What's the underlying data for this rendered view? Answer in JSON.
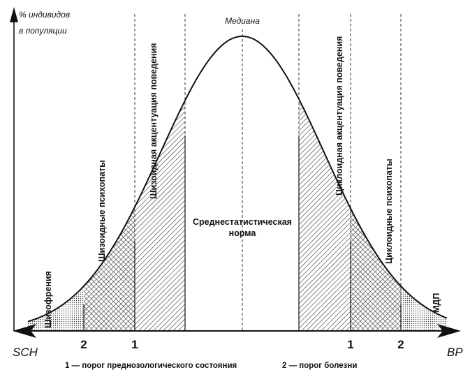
{
  "axis": {
    "y_label_line1": "% индивидов",
    "y_label_line2": "в популяции",
    "left_end": "SCH",
    "right_end": "BP"
  },
  "median_label": "Медиана",
  "regions": {
    "schizophrenia": "Шизофрения",
    "schizoid_psychopaths": "Шизоидные психопаты",
    "schizoid_accentuation": "Шизоидная акцентуация поведения",
    "norm_line1": "Среднестатистическая",
    "norm_line2": "норма",
    "cycloid_accentuation": "Циклоидная акцентуация поведения",
    "cycloid_psychopaths": "Циклоидные психопаты",
    "mdp": "МДП"
  },
  "threshold_marks": {
    "left_outer": "2",
    "left_inner": "1",
    "right_inner": "1",
    "right_outer": "2"
  },
  "legend": {
    "item1": "1 — порог преднозологического состояния",
    "item2": "2 — порог болезни"
  }
}
